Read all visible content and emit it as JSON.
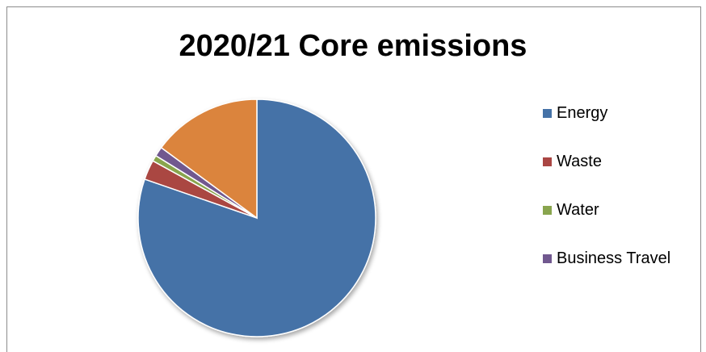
{
  "chart_data": {
    "type": "pie",
    "title": "2020/21 Core emissions",
    "legend_position": "right",
    "slices": [
      {
        "name": "Energy",
        "value": 80.3,
        "color": "#4572A7"
      },
      {
        "name": "Waste",
        "value": 2.7,
        "color": "#AA4643"
      },
      {
        "name": "Water",
        "value": 0.8,
        "color": "#89A54E"
      },
      {
        "name": "Business Travel",
        "value": 1.3,
        "color": "#71588F"
      },
      {
        "name": "",
        "value": 14.9,
        "color": "#DB843D"
      }
    ],
    "legend_entries": [
      "Energy",
      "Waste",
      "Water",
      "Business Travel"
    ]
  }
}
